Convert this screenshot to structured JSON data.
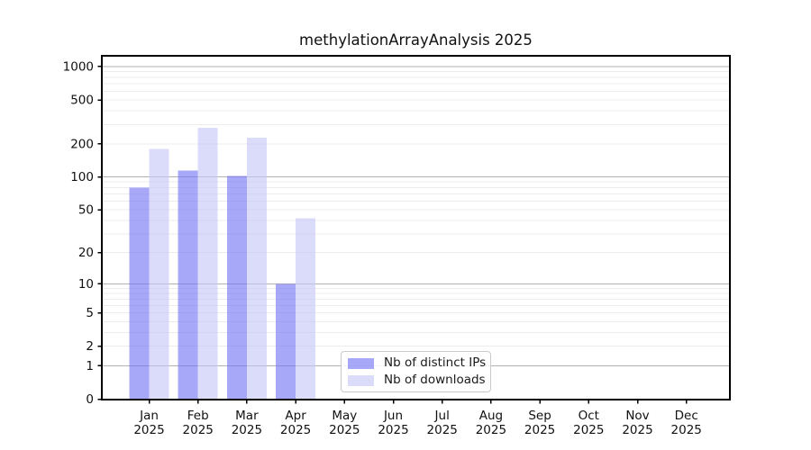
{
  "chart_data": {
    "type": "bar",
    "title": "methylationArrayAnalysis 2025",
    "x": {
      "months": [
        "Jan",
        "Feb",
        "Mar",
        "Apr",
        "May",
        "Jun",
        "Jul",
        "Aug",
        "Sep",
        "Oct",
        "Nov",
        "Dec"
      ],
      "year": "2025"
    },
    "series": [
      {
        "name": "Nb of distinct IPs",
        "color": "#7373f4",
        "fill_alpha": 0.62,
        "values": [
          80,
          114,
          102,
          10,
          0,
          0,
          0,
          0,
          0,
          0,
          0,
          0
        ]
      },
      {
        "name": "Nb of downloads",
        "color": "#c5c5f7",
        "fill_alpha": 0.62,
        "values": [
          180,
          280,
          228,
          42,
          0,
          0,
          0,
          0,
          0,
          0,
          0,
          0
        ]
      }
    ],
    "yscale": "log10(value+1)",
    "y_ticks": [
      0,
      1,
      2,
      5,
      10,
      20,
      50,
      100,
      200,
      500,
      1000
    ],
    "ylim": [
      0,
      1265
    ],
    "grid": {
      "orientation": "horizontal",
      "major_at": [
        1,
        10,
        100,
        1000
      ],
      "major_color": "#b2b2b2",
      "minor_color": "#ececec"
    },
    "legend": {
      "position": "inside-bottom-center",
      "entries": [
        "Nb of distinct IPs",
        "Nb of downloads"
      ]
    },
    "axis_color": "#000000",
    "background_color": "#ffffff"
  }
}
